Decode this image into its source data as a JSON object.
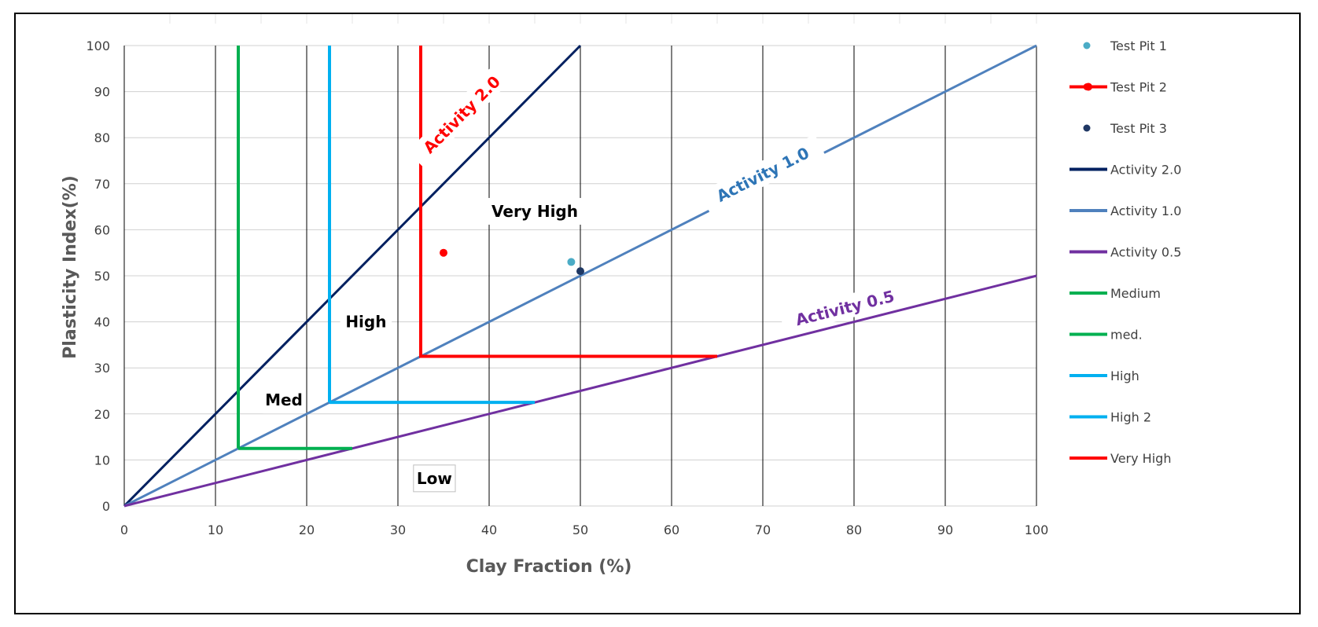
{
  "chart_data": {
    "type": "line",
    "xlabel": "Clay Fraction (%)",
    "ylabel": "Plasticity Index(%)",
    "xlim": [
      0,
      100
    ],
    "ylim": [
      0,
      100
    ],
    "x_ticks": [
      0,
      10,
      20,
      30,
      40,
      50,
      60,
      70,
      80,
      90,
      100
    ],
    "y_ticks": [
      0,
      10,
      20,
      30,
      40,
      50,
      60,
      70,
      80,
      90,
      100
    ],
    "grid": true,
    "legend_position": "right",
    "series": [
      {
        "name": "Test Pit 1",
        "kind": "scatter",
        "color": "#4bacc6",
        "points": [
          [
            49,
            53
          ]
        ]
      },
      {
        "name": "Test Pit 2",
        "kind": "scatter",
        "color": "#ff0000",
        "points": [
          [
            35,
            55
          ]
        ]
      },
      {
        "name": "Test Pit 3",
        "kind": "scatter",
        "color": "#1f3864",
        "points": [
          [
            50,
            51
          ]
        ]
      },
      {
        "name": "Activity 2.0",
        "kind": "line",
        "color": "#002060",
        "points": [
          [
            0,
            0
          ],
          [
            50,
            100
          ]
        ]
      },
      {
        "name": "Activity 1.0",
        "kind": "line",
        "color": "#4f81bd",
        "points": [
          [
            0,
            0
          ],
          [
            100,
            100
          ]
        ]
      },
      {
        "name": "Activity 0.5",
        "kind": "line",
        "color": "#7030a0",
        "points": [
          [
            0,
            0
          ],
          [
            100,
            50
          ]
        ]
      },
      {
        "name": "Medium",
        "kind": "line",
        "color": "#00b050",
        "points": [
          [
            12.5,
            100
          ],
          [
            12.5,
            12.5
          ]
        ]
      },
      {
        "name": "med.",
        "kind": "line",
        "color": "#00b050",
        "points": [
          [
            12.5,
            12.5
          ],
          [
            25,
            12.5
          ]
        ]
      },
      {
        "name": "High",
        "kind": "line",
        "color": "#00b0f0",
        "points": [
          [
            22.5,
            100
          ],
          [
            22.5,
            22.5
          ]
        ]
      },
      {
        "name": "High 2",
        "kind": "line",
        "color": "#00b0f0",
        "points": [
          [
            22.5,
            22.5
          ],
          [
            45,
            22.5
          ]
        ]
      },
      {
        "name": "Very High",
        "kind": "line",
        "color": "#ff0000",
        "points": [
          [
            32.5,
            100
          ],
          [
            32.5,
            32.5
          ],
          [
            65,
            32.5
          ]
        ]
      }
    ],
    "annotations": [
      {
        "text": "Activity 2.0",
        "x": 37,
        "y": 85,
        "color": "#ff0000",
        "angle_data_slope": 2.0
      },
      {
        "text": "Activity 1.0",
        "x": 70,
        "y": 72,
        "color": "#2e75b6",
        "angle_data_slope": 1.0
      },
      {
        "text": "Activity 0.5",
        "x": 79,
        "y": 43,
        "color": "#7030a0",
        "angle_data_slope": 0.5
      },
      {
        "text": "Very High",
        "x": 45,
        "y": 64,
        "color": "#000000",
        "boxed": true
      },
      {
        "text": "High",
        "x": 26.5,
        "y": 40,
        "color": "#000000",
        "boxed": true
      },
      {
        "text": "Med",
        "x": 17.5,
        "y": 23,
        "color": "#000000",
        "boxed": true
      },
      {
        "text": "Low",
        "x": 34,
        "y": 6,
        "color": "#000000",
        "boxed": true,
        "bordered": true
      }
    ]
  }
}
